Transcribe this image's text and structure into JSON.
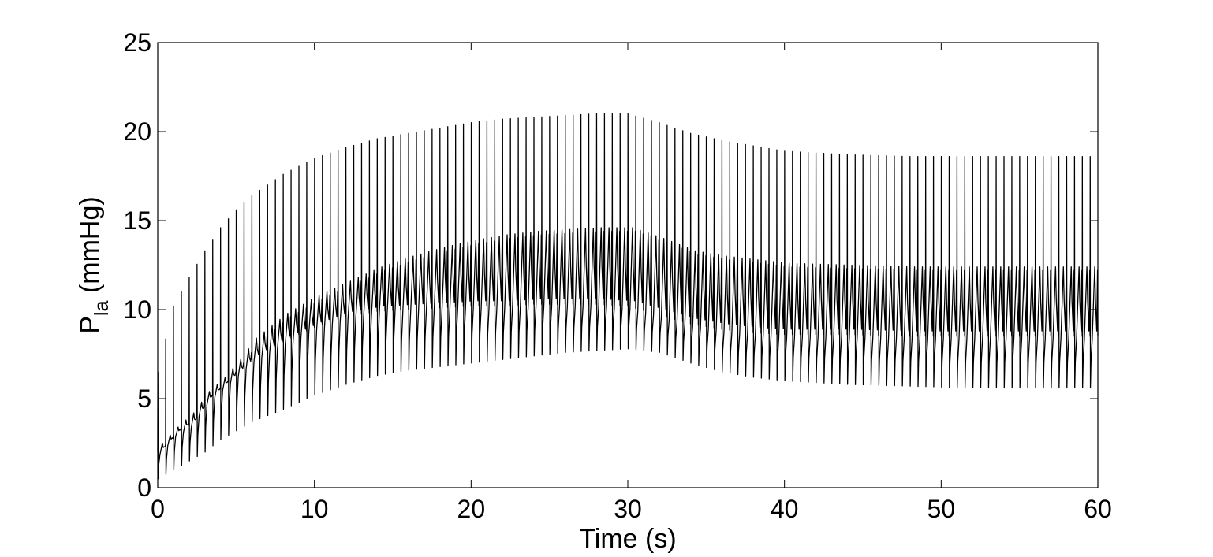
{
  "chart_data": {
    "type": "line",
    "title": "",
    "xlabel": "Time (s)",
    "ylabel_main": "P",
    "ylabel_sub": "la",
    "ylabel_unit": " (mmHg)",
    "xlim": [
      0,
      60
    ],
    "ylim": [
      0,
      25
    ],
    "x_ticks": [
      0,
      10,
      20,
      30,
      40,
      50,
      60
    ],
    "y_ticks": [
      0,
      5,
      10,
      15,
      20,
      25
    ],
    "grid": false,
    "legend": "none",
    "line_color": "#000000",
    "beat_period_s": 0.5,
    "series": [
      {
        "description_keyframes_time_s": [
          0,
          1,
          2,
          3,
          4,
          5,
          6,
          8,
          10,
          12,
          14,
          16,
          18,
          20,
          22,
          24,
          26,
          28,
          30,
          32,
          34,
          36,
          38,
          40,
          44,
          48,
          52,
          56,
          60
        ],
        "systolic_peak": [
          6.5,
          10.2,
          11.8,
          13.3,
          14.6,
          15.6,
          16.4,
          17.6,
          18.5,
          19.1,
          19.6,
          19.9,
          20.2,
          20.5,
          20.7,
          20.8,
          20.9,
          21.0,
          21.0,
          20.5,
          19.9,
          19.5,
          19.2,
          18.9,
          18.7,
          18.6,
          18.6,
          18.6,
          18.6
        ],
        "minimum": [
          0.5,
          1.0,
          1.5,
          2.0,
          2.7,
          3.2,
          3.7,
          4.4,
          5.2,
          5.8,
          6.3,
          6.6,
          6.8,
          7.0,
          7.2,
          7.4,
          7.6,
          7.7,
          7.8,
          7.6,
          7.0,
          6.5,
          6.2,
          6.0,
          5.8,
          5.7,
          5.6,
          5.6,
          5.6
        ],
        "wave_peak": [
          2.5,
          3.4,
          4.2,
          5.4,
          6.2,
          7.2,
          8.4,
          9.8,
          10.8,
          11.6,
          12.4,
          13.0,
          13.5,
          13.9,
          14.2,
          14.4,
          14.5,
          14.6,
          14.6,
          14.0,
          13.3,
          13.0,
          12.8,
          12.6,
          12.5,
          12.4,
          12.4,
          12.4,
          12.4
        ],
        "wave_trough": [
          2.0,
          3.0,
          3.5,
          4.8,
          5.6,
          6.4,
          7.2,
          8.2,
          9.0,
          9.6,
          9.9,
          10.0,
          10.1,
          10.2,
          10.2,
          10.3,
          10.3,
          10.3,
          10.2,
          9.7,
          9.2,
          8.9,
          8.7,
          8.6,
          8.6,
          8.5,
          8.5,
          8.5,
          8.5
        ]
      }
    ]
  }
}
